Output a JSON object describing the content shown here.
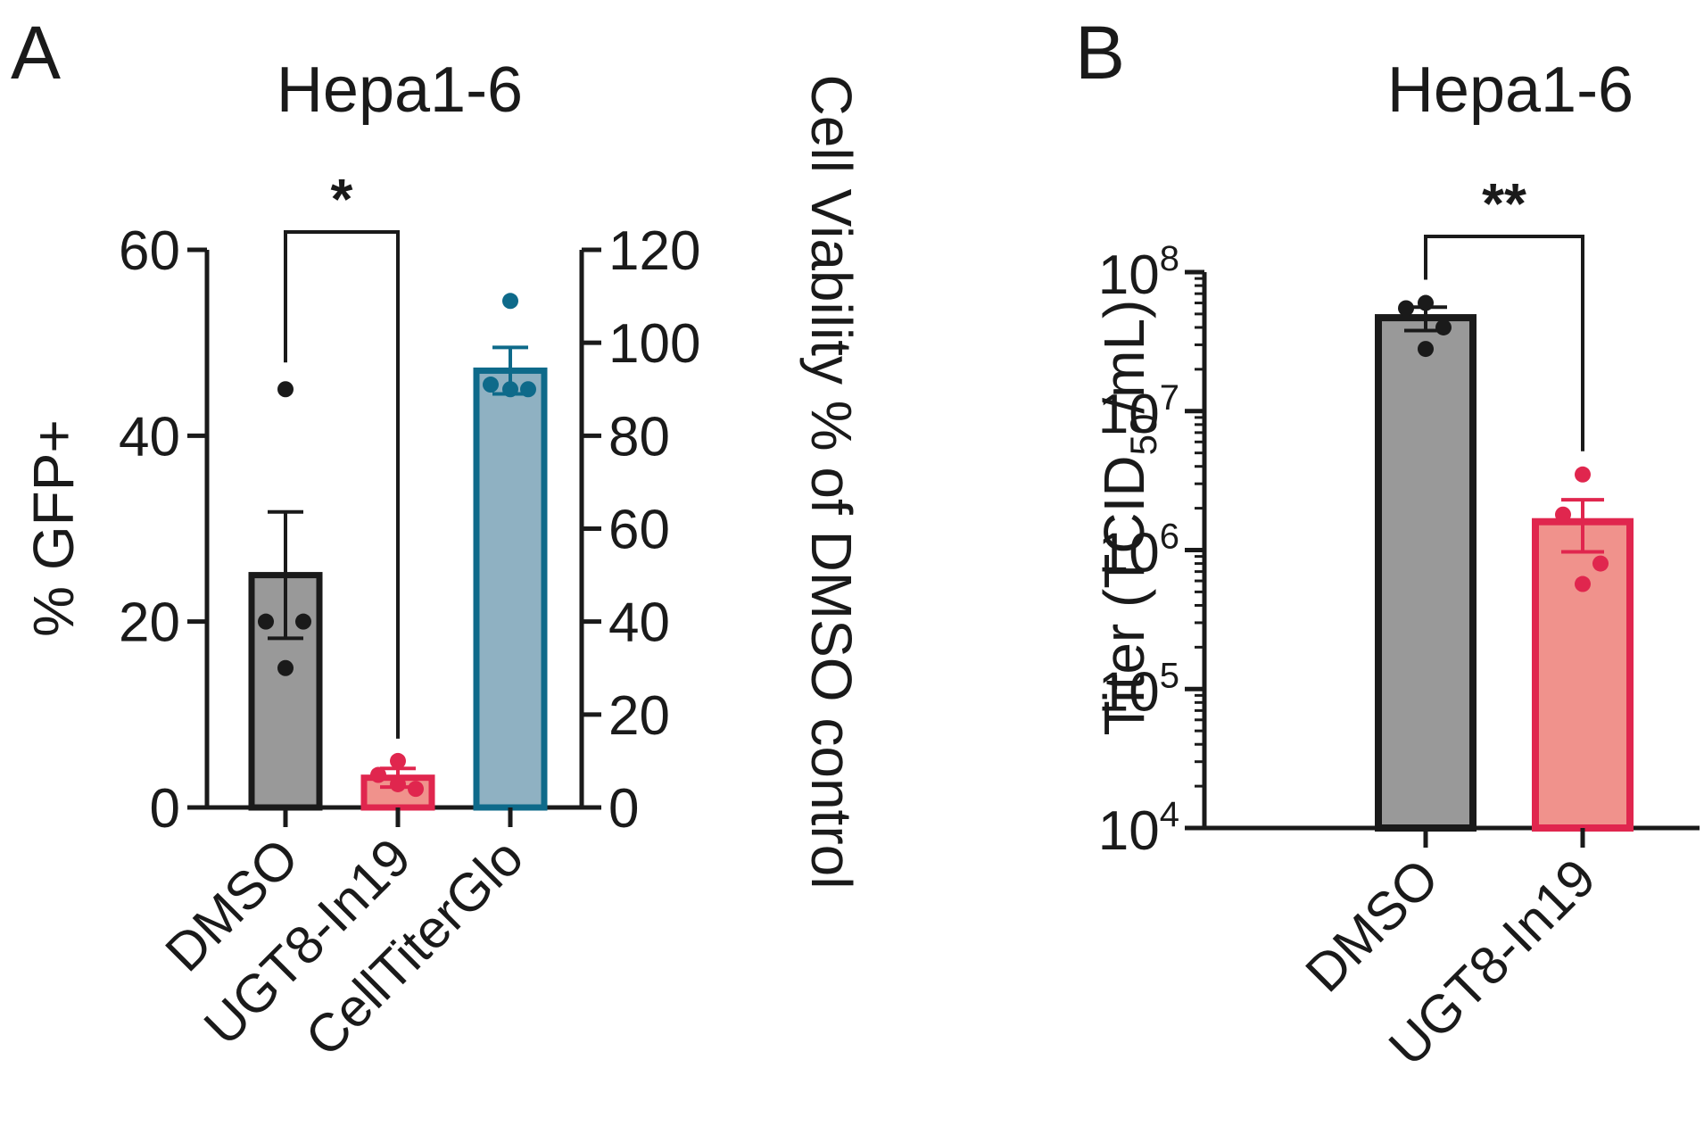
{
  "panels": [
    {
      "letter": "A",
      "title": "Hepa1-6"
    },
    {
      "letter": "B",
      "title": "Hepa1-6"
    }
  ],
  "colors": {
    "dmso_fill": "#999999",
    "dmso_edge": "#1a1a1a",
    "ugt_fill": "#f0928c",
    "ugt_edge": "#e0264e",
    "ctg_fill": "#8fb1c2",
    "ctg_edge": "#0e6a8a",
    "axis": "#1a1a1a"
  },
  "chart_data": [
    {
      "panel": "A",
      "type": "bar",
      "title": "Hepa1-6",
      "categories": [
        "DMSO",
        "UGT8-In19",
        "CellTiterGlo"
      ],
      "ylabel": "% GFP+",
      "ylim": [
        0,
        60
      ],
      "yticks": [
        0,
        20,
        40,
        60
      ],
      "y2label": "Cell Viability % of DMSO control",
      "y2lim": [
        0,
        120
      ],
      "y2ticks": [
        0,
        20,
        40,
        60,
        80,
        100,
        120
      ],
      "bars": [
        {
          "category": "DMSO",
          "axis": "left",
          "mean": 25,
          "sem": 6.8,
          "points": [
            45,
            20,
            20,
            15
          ],
          "color_key": "dmso"
        },
        {
          "category": "UGT8-In19",
          "axis": "left",
          "mean": 3.2,
          "sem": 1.0,
          "points": [
            5,
            3.5,
            2,
            2.5
          ],
          "color_key": "ugt"
        },
        {
          "category": "CellTiterGlo",
          "axis": "right",
          "mean": 94,
          "sem": 5,
          "points": [
            109,
            91,
            90,
            90
          ],
          "color_key": "ctg"
        }
      ],
      "significance": {
        "pair": [
          "DMSO",
          "UGT8-In19"
        ],
        "label": "*"
      }
    },
    {
      "panel": "B",
      "type": "bar",
      "title": "Hepa1-6",
      "categories": [
        "DMSO",
        "UGT8-In19"
      ],
      "ylabel": "Titer (TCID50/mL)",
      "ylabel_parts": {
        "main": "Titer (TCID",
        "sub": "50",
        "end": "/mL)"
      },
      "yscale": "log",
      "ylim": [
        10000,
        100000000
      ],
      "yticks": [
        10000,
        100000,
        1000000,
        10000000,
        100000000
      ],
      "ytick_labels": [
        {
          "base": "10",
          "exp": "4"
        },
        {
          "base": "10",
          "exp": "5"
        },
        {
          "base": "10",
          "exp": "6"
        },
        {
          "base": "10",
          "exp": "7"
        },
        {
          "base": "10",
          "exp": "8"
        }
      ],
      "bars": [
        {
          "category": "DMSO",
          "mean": 47000000,
          "sem_low": 38000000,
          "sem_high": 56000000,
          "points": [
            60000000,
            55000000,
            40000000,
            28000000
          ],
          "color_key": "dmso"
        },
        {
          "category": "UGT8-In19",
          "mean": 1600000,
          "sem_low": 970000,
          "sem_high": 2300000,
          "points": [
            3500000,
            1800000,
            800000,
            570000
          ],
          "color_key": "ugt"
        }
      ],
      "significance": {
        "pair": [
          "DMSO",
          "UGT8-In19"
        ],
        "label": "**"
      }
    }
  ]
}
